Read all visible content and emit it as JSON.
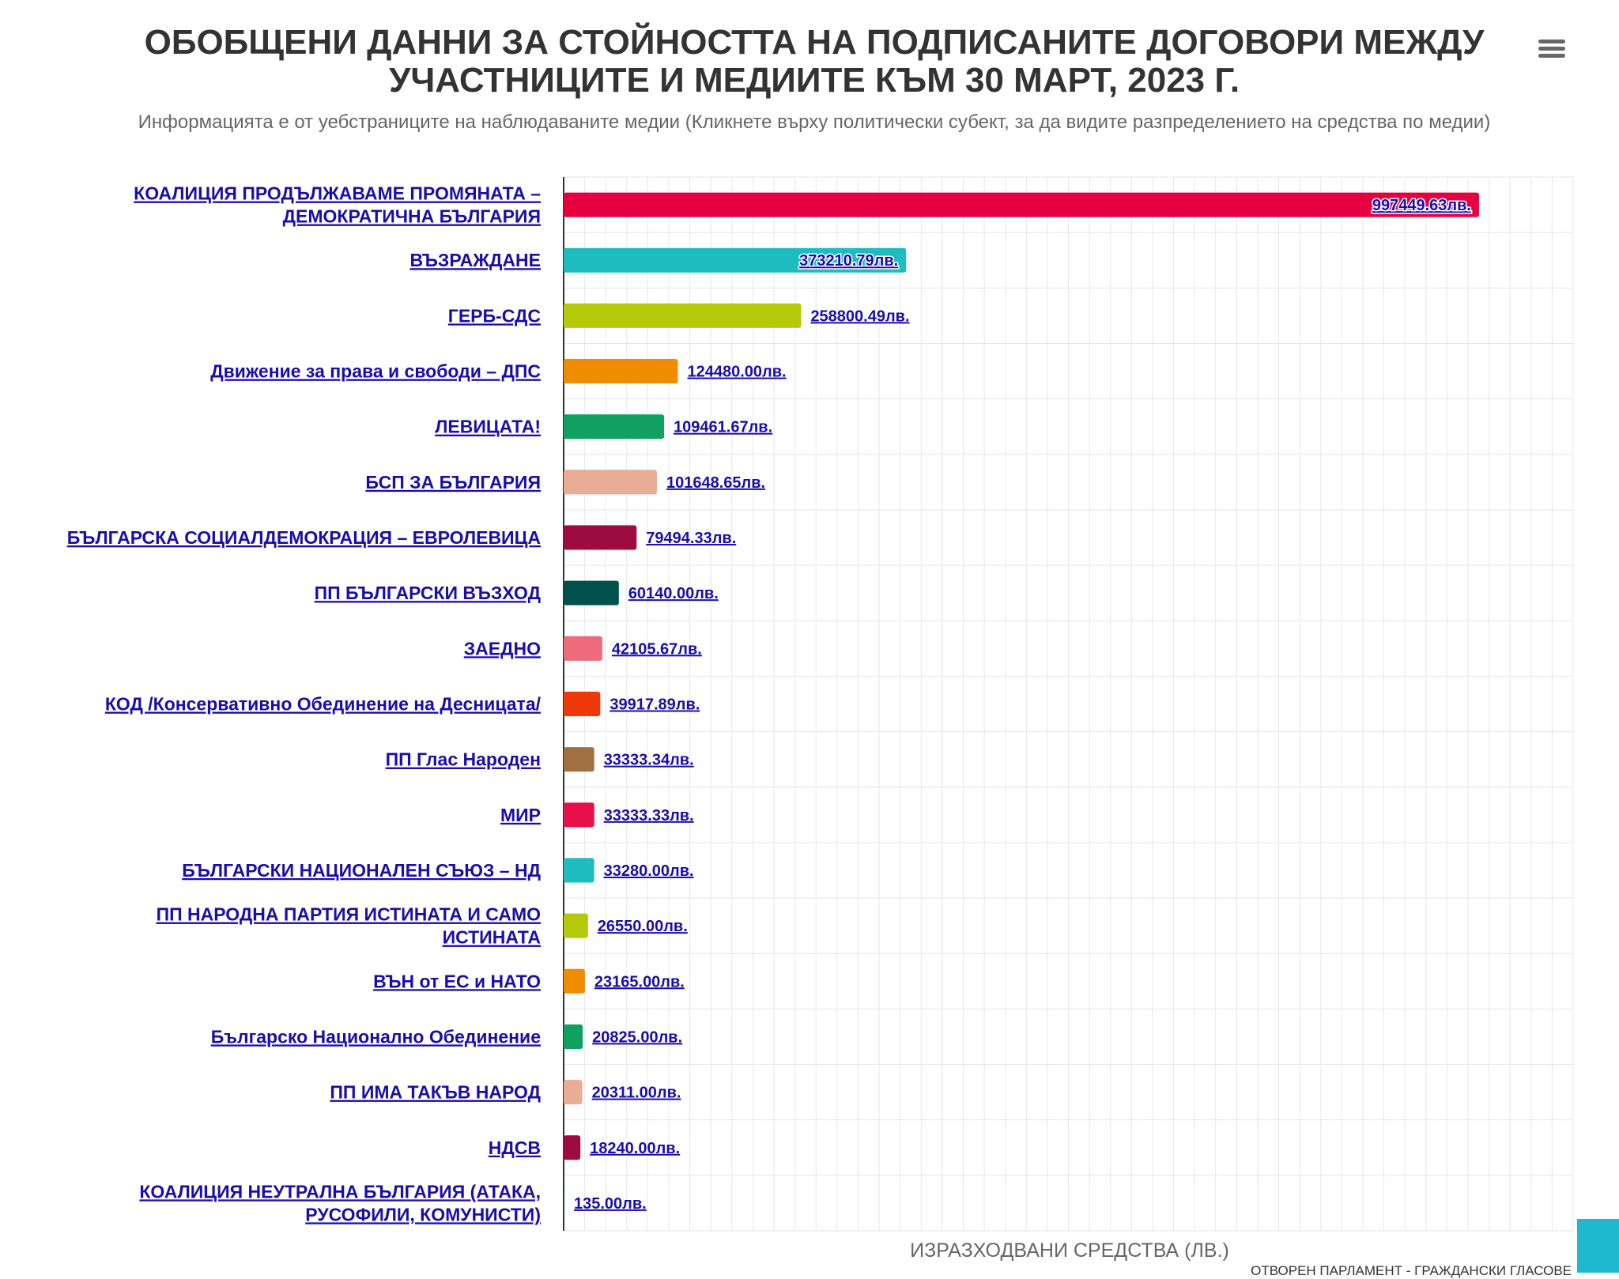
{
  "header": {
    "title_line1": "ОБОБЩЕНИ ДАННИ ЗА СТОЙНОСТТА НА ПОДПИСАНИТЕ ДОГОВОРИ МЕЖДУ",
    "title_line2": "УЧАСТНИЦИТЕ И МЕДИИТЕ КЪМ 30 МАРТ, 2023 Г.",
    "subtitle": "Информацията е от уебстраниците на наблюдаваните медии (Кликнете върху политически субект, за да видите разпределението на средства по медии)",
    "menu_icon": "hamburger-menu-icon"
  },
  "chart_data": {
    "type": "bar",
    "orientation": "horizontal",
    "title": "ОБОБЩЕНИ ДАННИ ЗА СТОЙНОСТТА НА ПОДПИСАНИТЕ ДОГОВОРИ МЕЖДУ УЧАСТНИЦИТЕ И МЕДИИТЕ КЪМ 30 МАРТ, 2023 Г.",
    "ylabel": "ИЗРАЗХОДВАНИ СРЕДСТВА (ЛВ.)",
    "xlabel": "",
    "value_suffix": "лв.",
    "xlim": [
      0,
      1100000
    ],
    "grid": true,
    "legend": "none",
    "categories": [
      [
        "КОАЛИЦИЯ ПРОДЪЛЖАВАМЕ ПРОМЯНАТА –",
        "ДЕМОКРАТИЧНА БЪЛГАРИЯ"
      ],
      [
        "ВЪЗРАЖДАНЕ"
      ],
      [
        "ГЕРБ-СДС"
      ],
      [
        "Движение за права и свободи – ДПС"
      ],
      [
        "ЛЕВИЦАТА!"
      ],
      [
        "БСП ЗА БЪЛГАРИЯ"
      ],
      [
        "БЪЛГАРСКА СОЦИАЛДЕМОКРАЦИЯ – ЕВРОЛЕВИЦА"
      ],
      [
        "ПП БЪЛГАРСКИ ВЪЗХОД"
      ],
      [
        "ЗАЕДНО"
      ],
      [
        "КОД /Консервативно Обединение на Десницата/"
      ],
      [
        "ПП Глас Народен"
      ],
      [
        "МИР"
      ],
      [
        "БЪЛГАРСКИ НАЦИОНАЛЕН СЪЮЗ – НД"
      ],
      [
        "ПП НАРОДНА ПАРТИЯ ИСТИНАТА И САМО",
        "ИСТИНАТА"
      ],
      [
        "ВЪН от ЕС и НАТО"
      ],
      [
        "Българско Национално Обединение"
      ],
      [
        "ПП ИМА ТАКЪВ НАРОД"
      ],
      [
        "НДСВ"
      ],
      [
        "КОАЛИЦИЯ НЕУТРАЛНА БЪЛГАРИЯ (АТАКА,",
        "РУСОФИЛИ, КОМУНИСТИ)"
      ]
    ],
    "values": [
      997449.63,
      373210.79,
      258800.49,
      124480.0,
      109461.67,
      101648.65,
      79494.33,
      60140.0,
      42105.67,
      39917.89,
      33333.34,
      33333.33,
      33280.0,
      26550.0,
      23165.0,
      20825.0,
      20311.0,
      18240.0,
      135.0
    ],
    "value_labels": [
      "997449.63лв.",
      "373210.79лв.",
      "258800.49лв.",
      "124480.00лв.",
      "109461.67лв.",
      "101648.65лв.",
      "79494.33лв.",
      "60140.00лв.",
      "42105.67лв.",
      "39917.89лв.",
      "33333.34лв.",
      "33333.33лв.",
      "33280.00лв.",
      "26550.00лв.",
      "23165.00лв.",
      "20825.00лв.",
      "20311.00лв.",
      "18240.00лв.",
      "135.00лв."
    ],
    "colors": [
      "#e6003f",
      "#1ebcbf",
      "#b3c909",
      "#f08c00",
      "#0fa062",
      "#e8ad94",
      "#9e0b3f",
      "#00514c",
      "#ec6a7a",
      "#ee3a0a",
      "#a07040",
      "#e8104a",
      "#1ebcbf",
      "#b3c909",
      "#f08c00",
      "#0fa062",
      "#e8ad94",
      "#9e0b3f",
      "#00514c"
    ]
  },
  "footer": {
    "credits": "ОТВОРЕН ПАРЛАМЕНТ - ГРАЖДАНСКИ ГЛАСОВЕ"
  }
}
